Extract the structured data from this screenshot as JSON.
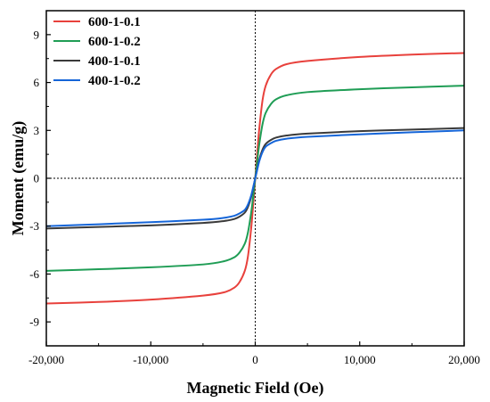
{
  "chart_data": {
    "type": "line",
    "title": "",
    "xlabel": "Magnetic Field (Oe)",
    "ylabel": "Moment (emu/g)",
    "xlim": [
      -20000,
      20000
    ],
    "ylim": [
      -10.5,
      10.5
    ],
    "xticks": [
      -20000,
      -10000,
      0,
      10000,
      20000
    ],
    "xtick_labels": [
      "-20,000",
      "-10,000",
      "0",
      "10,000",
      "20,000"
    ],
    "yticks": [
      -9,
      -6,
      -3,
      0,
      3,
      6,
      9
    ],
    "ytick_labels": [
      "-9",
      "-6",
      "-3",
      "0",
      "3",
      "6",
      "9"
    ],
    "grid": false,
    "zero_reference_lines": true,
    "legend_position": "top-left",
    "series": [
      {
        "name": "600-1-0.1",
        "color": "#e8413c",
        "x": [
          -20000,
          -15000,
          -10000,
          -5000,
          -3000,
          -2000,
          -1500,
          -1000,
          -700,
          -400,
          -200,
          0,
          200,
          400,
          700,
          1000,
          1500,
          2000,
          3000,
          5000,
          10000,
          15000,
          20000
        ],
        "y": [
          -7.85,
          -7.75,
          -7.6,
          -7.35,
          -7.15,
          -6.85,
          -6.5,
          -5.8,
          -4.9,
          -3.2,
          -1.7,
          0,
          1.7,
          3.2,
          4.9,
          5.8,
          6.5,
          6.85,
          7.15,
          7.35,
          7.6,
          7.75,
          7.85
        ]
      },
      {
        "name": "600-1-0.2",
        "color": "#1f9d55",
        "x": [
          -20000,
          -15000,
          -10000,
          -5000,
          -3000,
          -2000,
          -1500,
          -1000,
          -700,
          -400,
          -200,
          0,
          200,
          400,
          700,
          1000,
          1500,
          2000,
          3000,
          5000,
          10000,
          15000,
          20000
        ],
        "y": [
          -5.8,
          -5.7,
          -5.58,
          -5.4,
          -5.2,
          -4.95,
          -4.65,
          -4.1,
          -3.4,
          -2.2,
          -1.15,
          0,
          1.15,
          2.2,
          3.4,
          4.1,
          4.65,
          4.95,
          5.2,
          5.4,
          5.58,
          5.7,
          5.8
        ]
      },
      {
        "name": "400-1-0.1",
        "color": "#3a3a3a",
        "x": [
          -20000,
          -15000,
          -10000,
          -5000,
          -3000,
          -2000,
          -1500,
          -1000,
          -700,
          -400,
          -200,
          0,
          200,
          400,
          700,
          1000,
          1500,
          2000,
          3000,
          5000,
          10000,
          15000,
          20000
        ],
        "y": [
          -3.15,
          -3.05,
          -2.95,
          -2.8,
          -2.68,
          -2.55,
          -2.4,
          -2.15,
          -1.8,
          -1.2,
          -0.62,
          0,
          0.62,
          1.2,
          1.8,
          2.15,
          2.4,
          2.55,
          2.68,
          2.8,
          2.95,
          3.05,
          3.15
        ]
      },
      {
        "name": "400-1-0.2",
        "color": "#1565d8",
        "x": [
          -20000,
          -15000,
          -10000,
          -5000,
          -3000,
          -2000,
          -1500,
          -1000,
          -700,
          -400,
          -200,
          0,
          200,
          400,
          700,
          1000,
          1500,
          2000,
          3000,
          5000,
          10000,
          15000,
          20000
        ],
        "y": [
          -3.0,
          -2.88,
          -2.75,
          -2.6,
          -2.48,
          -2.35,
          -2.2,
          -1.98,
          -1.65,
          -1.1,
          -0.57,
          0,
          0.57,
          1.1,
          1.65,
          1.98,
          2.2,
          2.35,
          2.48,
          2.6,
          2.75,
          2.88,
          3.0
        ]
      }
    ]
  }
}
